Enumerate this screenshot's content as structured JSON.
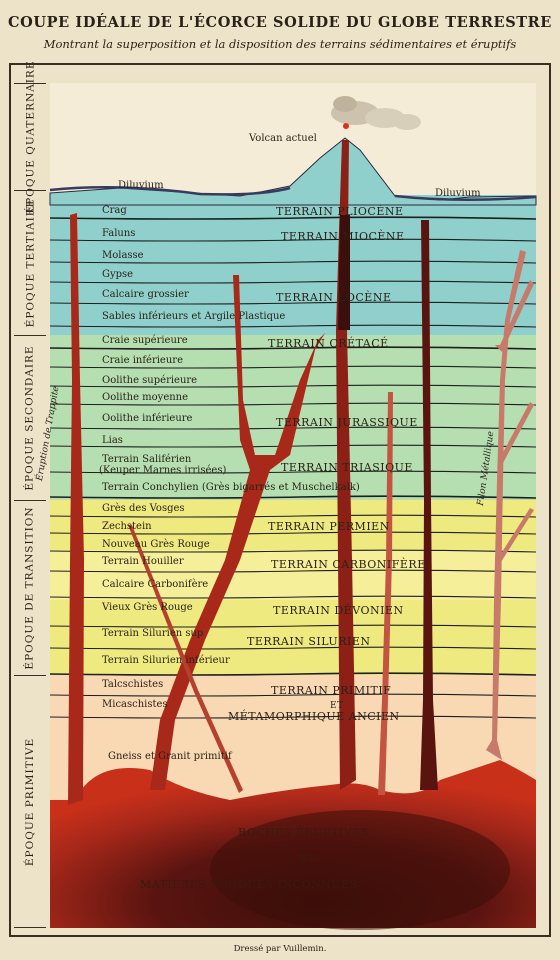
{
  "title": "COUPE IDÉALE DE L'ÉCORCE SOLIDE DU GLOBE TERRESTRE",
  "subtitle": "Montrant la superposition et la disposition des terrains sédimentaires et éruptifs",
  "epochs": {
    "quaternaire": "ÉPOQUE QUATERNAIRE",
    "tertiaire": "ÉPOQUE TERTIAIRE",
    "secondaire": "ÉPOQUE SECONDAIRE",
    "transition": "ÉPOQUE DE TRANSITION",
    "primitive": "ÉPOQUE PRIMITIVE"
  },
  "surface": {
    "volcano": "Volcan actuel",
    "diluvium_left": "Diluvium",
    "diluvium_right": "Diluvium"
  },
  "strata": {
    "crag": "Crag",
    "faluns": "Faluns",
    "molasse": "Molasse",
    "gypse": "Gypse",
    "calcaire_grossier": "Calcaire grossier",
    "sables": "Sables inférieurs et Argile Plastique",
    "craie_sup": "Craie supérieure",
    "craie_inf": "Craie inférieure",
    "oolithe_sup": "Oolithe supérieure",
    "oolithe_moy": "Oolithe moyenne",
    "oolithe_inf": "Oolithe inférieure",
    "lias": "Lias",
    "salifere": "Terrain Saliférien",
    "keuper": "(Keuper Marnes irrisées)",
    "conchylien": "Terrain Conchylien (Grès bigarrés et Muschelkalk)",
    "gres_vosges": "Grès des Vosges",
    "zechstein": "Zechstein",
    "nouveau_gres": "Nouveau Grès Rouge",
    "houiller": "Terrain Houiller",
    "calcaire_carbonifere": "Calcaire Carbonifère",
    "vieux_gres": "Vieux Grès Rouge",
    "silurien_sup": "Terrain Silurien sup",
    "silurien_inf": "Terrain Silurien inférieur",
    "talcschistes": "Talcschistes",
    "micaschistes": "Micaschistes",
    "gneiss": "Gneiss et Granit primitif"
  },
  "systems": {
    "pliocene": "TERRAIN PLIOCÈNE",
    "miocene": "TERRAIN MIOCÈNE",
    "eocene": "TERRAIN ÉOCÈNE",
    "cretace": "TERRAIN CRÉTACÉ",
    "jurassique": "TERRAIN JURASSIQUE",
    "triasique": "TERRAIN TRIASIQUE",
    "permien": "TERRAIN PERMIEN",
    "carbonifere": "TERRAIN CARBONIFÈRE",
    "devonien": "TERRAIN DÉVONIEN",
    "silurien": "TERRAIN SILURIEN",
    "primitif": "TERRAIN PRIMITIF",
    "et": "ET",
    "metamorphique": "MÉTAMORPHIQUE ANCIEN"
  },
  "intrusions": {
    "trappe": "Éruption de Trappite",
    "filon": "Filon Métallique"
  },
  "base": {
    "line1": "ROCHES ÉRUPTIVES",
    "line2": "ET",
    "line3": "MATIÈRES FONDUES INCONNUES"
  },
  "footer": "Dressé par Vuillemin.",
  "colors": {
    "sky": "#f4ecd6",
    "tertiary": "#8fd0cc",
    "secondary": "#b5dfb0",
    "transition_yellow": "#eeea80",
    "transition_light": "#f5ef9a",
    "primitive": "#f8d9b4",
    "magma": "#c9301a",
    "magma_dark": "#3c0f0a",
    "dyke": "#a8291a",
    "dark_dyke": "#3a0f0c"
  }
}
